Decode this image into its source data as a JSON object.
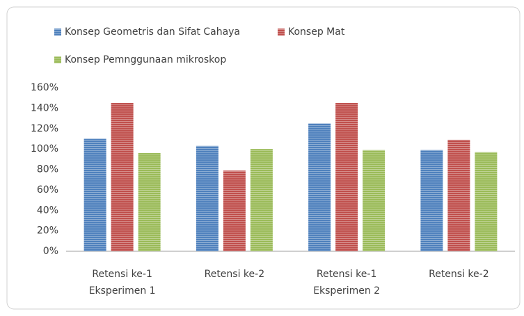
{
  "chart_data": {
    "type": "bar",
    "categories": [
      [
        "Retensi ke-1",
        "Eksperimen 1"
      ],
      [
        "Retensi ke-2"
      ],
      [
        "Retensi ke-1",
        "Eksperimen 2"
      ],
      [
        "Retensi ke-2"
      ]
    ],
    "series": [
      {
        "name": "Konsep Geometris dan Sifat Cahaya",
        "color": "#4f81bd",
        "values": [
          110,
          103,
          125,
          99
        ]
      },
      {
        "name": "Konsep Mat",
        "color": "#c0504d",
        "values": [
          145,
          79,
          145,
          109
        ]
      },
      {
        "name": "Konsep Pemnggunaan mikroskop",
        "color": "#9bbb59",
        "values": [
          96,
          100,
          99,
          97
        ]
      }
    ],
    "ylim": [
      0,
      160
    ],
    "yticks": [
      {
        "value": 0,
        "label": "0%"
      },
      {
        "value": 20,
        "label": "20%"
      },
      {
        "value": 40,
        "label": "40%"
      },
      {
        "value": 60,
        "label": "60%"
      },
      {
        "value": 80,
        "label": "80%"
      },
      {
        "value": 100,
        "label": "100%"
      },
      {
        "value": 120,
        "label": "120%"
      },
      {
        "value": 140,
        "label": "140%"
      },
      {
        "value": 160,
        "label": "160%"
      }
    ],
    "grid": false
  }
}
